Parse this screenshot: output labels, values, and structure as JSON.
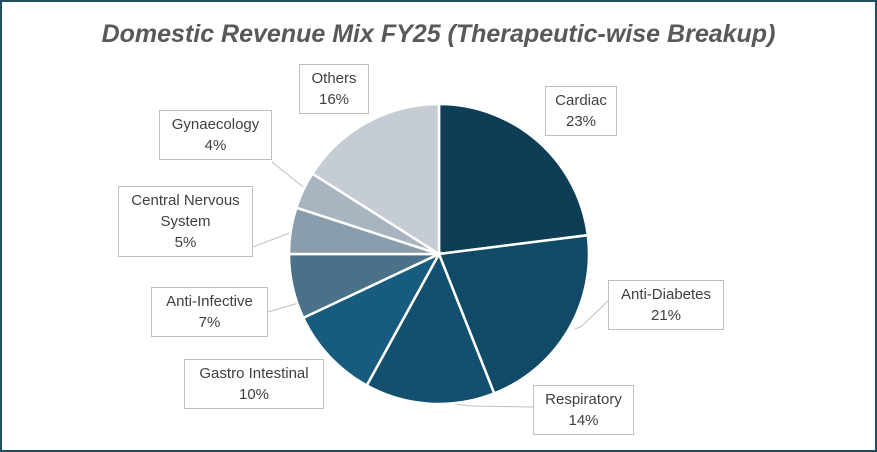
{
  "chart_data": {
    "type": "pie",
    "title": "Domestic Revenue Mix FY25 (Therapeutic-wise Breakup)",
    "categories": [
      "Cardiac",
      "Anti-Diabetes",
      "Respiratory",
      "Gastro Intestinal",
      "Anti-Infective",
      "Central Nervous System",
      "Gynaecology",
      "Others"
    ],
    "values": [
      23,
      21,
      14,
      10,
      7,
      5,
      4,
      16
    ],
    "value_labels": [
      "23%",
      "21%",
      "14%",
      "10%",
      "7%",
      "5%",
      "4%",
      "16%"
    ],
    "colors": [
      "#0d3e56",
      "#114a66",
      "#13506f",
      "#175b7e",
      "#4b7189",
      "#8a9dac",
      "#a8b4bf",
      "#c6ccd4"
    ]
  }
}
